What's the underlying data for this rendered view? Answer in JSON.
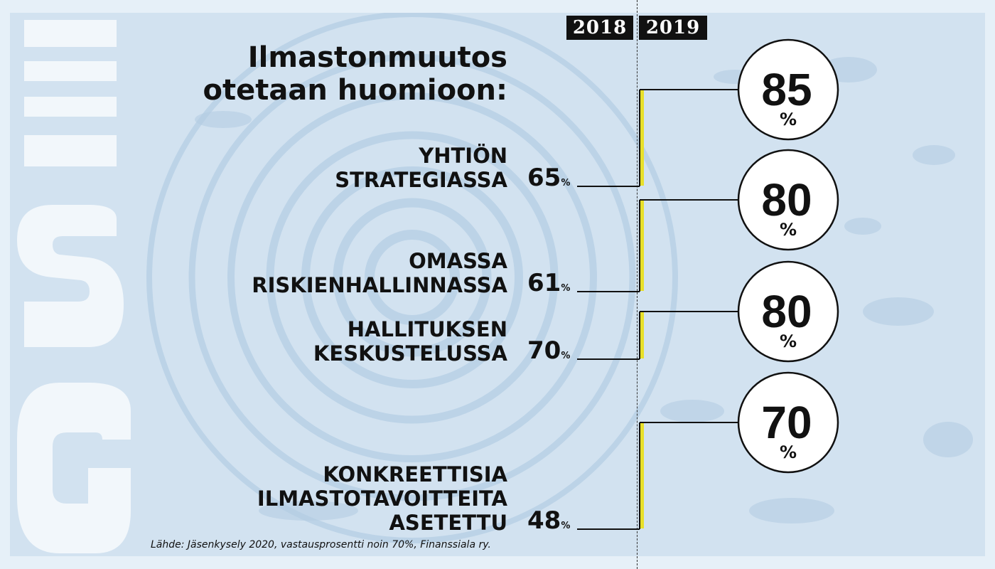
{
  "title_line1": "Ilmastonmuutos",
  "title_line2": "otetaan huomioon:",
  "source": "Lähde: Jäsenkysely 2020, vastausprosentti noin 70%, Finanssiala ry.",
  "deco_letters": "GSII",
  "colors": {
    "accent_yellow": "#e8e02a",
    "background": "#d2e2f0",
    "ink": "#111111"
  },
  "chart_data": {
    "type": "slope",
    "title": "Ilmastonmuutos otetaan huomioon:",
    "years": [
      "2018",
      "2019"
    ],
    "unit": "%",
    "categories": [
      {
        "label_lines": [
          "YHTIÖN",
          "STRATEGIASSA"
        ],
        "value_2018": 65,
        "value_2019": 85
      },
      {
        "label_lines": [
          "OMASSA",
          "RISKIENHALLINNASSA"
        ],
        "value_2018": 61,
        "value_2019": 80
      },
      {
        "label_lines": [
          "HALLITUKSEN",
          "KESKUSTELUSSA"
        ],
        "value_2018": 70,
        "value_2019": 80
      },
      {
        "label_lines": [
          "KONKREETTISIA",
          "ILMASTOTAVOITTEITA",
          "ASETETTU"
        ],
        "value_2018": 48,
        "value_2019": 70
      }
    ]
  }
}
